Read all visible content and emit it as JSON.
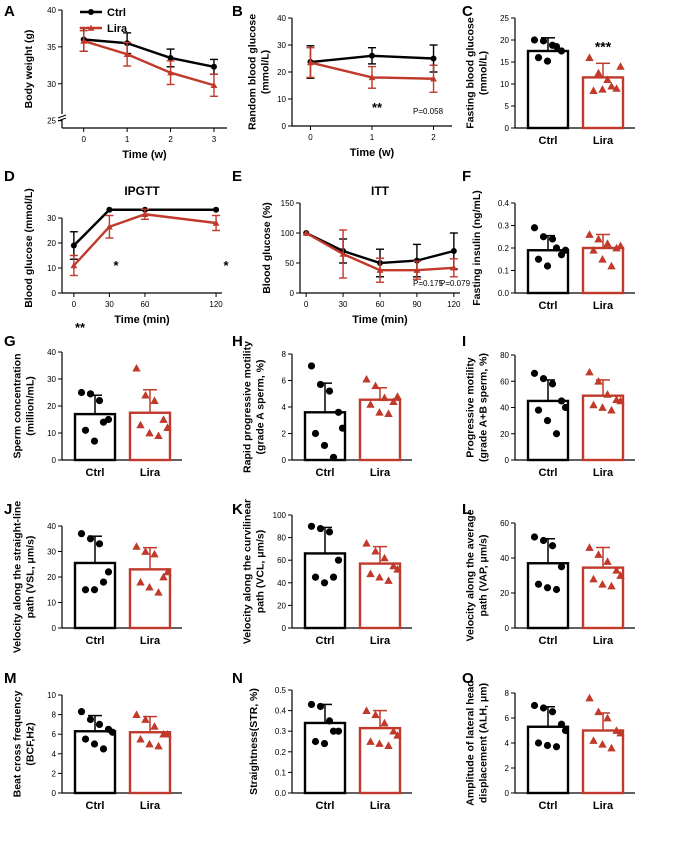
{
  "colors": {
    "ctrl": "#000000",
    "lira": "#c0392b"
  },
  "chart_data": [
    {
      "panel": "A",
      "type": "line",
      "title": "",
      "xlabel": "Time (w)",
      "ylabel": "Body weight (g)",
      "x": [
        0,
        1,
        2,
        3
      ],
      "xlim": [
        -0.5,
        3.3
      ],
      "yticks": [
        "25",
        "30",
        "35",
        "40"
      ],
      "ylim": [
        24,
        40
      ],
      "y_axis_break": true,
      "legend": [
        "Ctrl",
        "Lira"
      ],
      "legend_position": "top-left",
      "series": [
        {
          "name": "Ctrl",
          "values": [
            36.0,
            35.5,
            33.5,
            32.3
          ],
          "err": [
            1.6,
            1.4,
            1.2,
            1.0
          ]
        },
        {
          "name": "Lira",
          "values": [
            35.8,
            34.0,
            31.5,
            29.8
          ],
          "err": [
            1.4,
            1.6,
            1.6,
            1.5
          ]
        }
      ],
      "annotations": []
    },
    {
      "panel": "B",
      "type": "line",
      "title": "",
      "xlabel": "Time (w)",
      "ylabel": "Random blood glucose (mmol/L)",
      "x": [
        0,
        1,
        2
      ],
      "xlim": [
        -0.3,
        2.3
      ],
      "yticks": [
        "0",
        "10",
        "20",
        "30",
        "40"
      ],
      "ylim": [
        0,
        40
      ],
      "series": [
        {
          "name": "Ctrl",
          "values": [
            23.7,
            26.0,
            25.0
          ],
          "err": [
            6.0,
            3.0,
            5.0
          ]
        },
        {
          "name": "Lira",
          "values": [
            23.5,
            18.0,
            17.5
          ],
          "err": [
            5.5,
            4.0,
            5.0
          ]
        }
      ],
      "annotations": [
        "**",
        "P=0.058"
      ]
    },
    {
      "panel": "C",
      "type": "bar",
      "title": "",
      "categories": [
        "Ctrl",
        "Lira"
      ],
      "ylabel": "Fasting blood glucose (mmol/L)",
      "yticks": [
        "0",
        "5",
        "10",
        "15",
        "20",
        "25"
      ],
      "ylim": [
        0,
        25
      ],
      "values": [
        17.5,
        11.5
      ],
      "err": [
        3.0,
        3.2
      ],
      "points": [
        [
          20.0,
          19.8,
          18.8,
          17.5,
          16.0,
          15.2,
          18.5
        ],
        [
          16.0,
          12.5,
          11.0,
          9.0,
          8.5,
          8.8,
          9.5,
          14.0
        ]
      ],
      "annotations": [
        "***"
      ]
    },
    {
      "panel": "D",
      "type": "line",
      "title": "IPGTT",
      "xlabel": "Time (min)",
      "ylabel": "Blood glucose (mmol/L)",
      "x": [
        0,
        30,
        60,
        120
      ],
      "xlim": [
        -10,
        125
      ],
      "yticks": [
        "0",
        "10",
        "20",
        "30"
      ],
      "ylim": [
        0,
        36
      ],
      "series": [
        {
          "name": "Ctrl",
          "values": [
            19.0,
            33.3,
            33.3,
            33.3
          ],
          "err": [
            5.5,
            0,
            0,
            0
          ]
        },
        {
          "name": "Lira",
          "values": [
            11.0,
            26.5,
            31.5,
            28.0
          ],
          "err": [
            4.0,
            4.5,
            2.0,
            3.0
          ]
        }
      ],
      "annotations": [
        "**",
        "*",
        "*"
      ]
    },
    {
      "panel": "E",
      "type": "line",
      "title": "ITT",
      "xlabel": "Time (min)",
      "ylabel": "Blood glucose (%)",
      "x": [
        0,
        30,
        60,
        90,
        120
      ],
      "xlim": [
        -5,
        125
      ],
      "yticks": [
        "0",
        "50",
        "100",
        "150"
      ],
      "ylim": [
        0,
        150
      ],
      "series": [
        {
          "name": "Ctrl",
          "values": [
            100,
            70,
            50,
            54,
            70
          ],
          "err": [
            0,
            20,
            23,
            27,
            30
          ]
        },
        {
          "name": "Lira",
          "values": [
            100,
            65,
            38,
            38,
            42
          ],
          "err": [
            0,
            40,
            20,
            15,
            15
          ]
        }
      ],
      "annotations": [
        "P=0.175",
        "P=0.079"
      ]
    },
    {
      "panel": "F",
      "type": "bar",
      "title": "",
      "categories": [
        "Ctrl",
        "Lira"
      ],
      "ylabel": "Fasting insulin (ng/mL)",
      "yticks": [
        "0.0",
        "0.1",
        "0.2",
        "0.3",
        "0.4"
      ],
      "ylim": [
        0,
        0.4
      ],
      "values": [
        0.19,
        0.2
      ],
      "err": [
        0.065,
        0.06
      ],
      "points": [
        [
          0.29,
          0.25,
          0.24,
          0.17,
          0.15,
          0.12,
          0.2,
          0.19
        ],
        [
          0.26,
          0.24,
          0.22,
          0.2,
          0.19,
          0.15,
          0.12,
          0.21
        ]
      ],
      "annotations": []
    },
    {
      "panel": "G",
      "type": "bar",
      "title": "",
      "categories": [
        "Ctrl",
        "Lira"
      ],
      "ylabel": "Sperm concentration (million/mL)",
      "yticks": [
        "0",
        "10",
        "20",
        "30",
        "40"
      ],
      "ylim": [
        0,
        40
      ],
      "values": [
        17,
        17.5
      ],
      "err": [
        7,
        8.5
      ],
      "points": [
        [
          25,
          24.5,
          22,
          15,
          11,
          7,
          14
        ],
        [
          34,
          24,
          22,
          15,
          13,
          10,
          9,
          12
        ]
      ],
      "annotations": []
    },
    {
      "panel": "H",
      "type": "bar",
      "title": "",
      "categories": [
        "Ctrl",
        "Lira"
      ],
      "ylabel": "Rapid progressive motility (grade A sperm, %)",
      "yticks": [
        "0",
        "2",
        "4",
        "6",
        "8"
      ],
      "ylim": [
        0,
        8
      ],
      "values": [
        3.6,
        4.55
      ],
      "err": [
        2.2,
        0.9
      ],
      "points": [
        [
          7.1,
          5.7,
          5.2,
          3.6,
          2.0,
          1.1,
          0.2,
          2.4
        ],
        [
          6.1,
          5.6,
          4.7,
          4.4,
          4.2,
          3.6,
          3.5,
          4.8
        ]
      ],
      "annotations": []
    },
    {
      "panel": "I",
      "type": "bar",
      "title": "",
      "categories": [
        "Ctrl",
        "Lira"
      ],
      "ylabel": "Progressive motility (grade A+B sperm, %)",
      "yticks": [
        "0",
        "20",
        "40",
        "60",
        "80"
      ],
      "ylim": [
        0,
        80
      ],
      "values": [
        45,
        49
      ],
      "err": [
        16,
        12
      ],
      "points": [
        [
          66,
          62,
          58,
          45,
          38,
          30,
          20,
          40
        ],
        [
          67,
          60,
          50,
          46,
          42,
          40,
          38,
          45
        ]
      ],
      "annotations": []
    },
    {
      "panel": "J",
      "type": "bar",
      "title": "",
      "categories": [
        "Ctrl",
        "Lira"
      ],
      "ylabel": "Velocity along the straight-line path (VSL, μm/s)",
      "yticks": [
        "0",
        "10",
        "20",
        "30",
        "40"
      ],
      "ylim": [
        0,
        40
      ],
      "values": [
        25.5,
        23
      ],
      "err": [
        10.5,
        8.5
      ],
      "points": [
        [
          37,
          35,
          33,
          22,
          15,
          15,
          18
        ],
        [
          32,
          30,
          29,
          20,
          18,
          16,
          14,
          22
        ]
      ],
      "annotations": []
    },
    {
      "panel": "K",
      "type": "bar",
      "title": "",
      "categories": [
        "Ctrl",
        "Lira"
      ],
      "ylabel": "Velocity along the curvilinear path (VCL, μm/s)",
      "yticks": [
        "0",
        "20",
        "40",
        "60",
        "80",
        "100"
      ],
      "ylim": [
        0,
        100
      ],
      "values": [
        66,
        57
      ],
      "err": [
        23,
        15
      ],
      "points": [
        [
          90,
          88,
          85,
          60,
          45,
          40,
          45
        ],
        [
          75,
          68,
          62,
          55,
          48,
          45,
          42,
          52
        ]
      ],
      "annotations": []
    },
    {
      "panel": "L",
      "type": "bar",
      "title": "",
      "categories": [
        "Ctrl",
        "Lira"
      ],
      "ylabel": "Velocity along the average path (VAP, μm/s)",
      "yticks": [
        "0",
        "20",
        "40",
        "60"
      ],
      "ylim": [
        0,
        60
      ],
      "values": [
        37,
        34.5
      ],
      "err": [
        14,
        11.5
      ],
      "points": [
        [
          52,
          50,
          47,
          35,
          25,
          23,
          22
        ],
        [
          46,
          42,
          38,
          33,
          28,
          25,
          24,
          30
        ]
      ],
      "annotations": []
    },
    {
      "panel": "M",
      "type": "bar",
      "title": "",
      "categories": [
        "Ctrl",
        "Lira"
      ],
      "ylabel": "Beat cross frequency (BCF,Hz)",
      "yticks": [
        "0",
        "2",
        "4",
        "6",
        "8",
        "10"
      ],
      "ylim": [
        0,
        10
      ],
      "values": [
        6.3,
        6.2
      ],
      "err": [
        1.6,
        1.6
      ],
      "points": [
        [
          8.3,
          7.5,
          7.0,
          6.5,
          5.5,
          5.0,
          4.5,
          6.2
        ],
        [
          8.0,
          7.5,
          6.8,
          6.0,
          5.5,
          5.0,
          4.8,
          6.0
        ]
      ],
      "annotations": []
    },
    {
      "panel": "N",
      "type": "bar",
      "title": "",
      "categories": [
        "Ctrl",
        "Lira"
      ],
      "ylabel": "Straightness(STR, %)",
      "yticks": [
        "0.0",
        "0.1",
        "0.2",
        "0.3",
        "0.4",
        "0.5"
      ],
      "ylim": [
        0,
        0.5
      ],
      "values": [
        0.34,
        0.315
      ],
      "err": [
        0.09,
        0.085
      ],
      "points": [
        [
          0.43,
          0.42,
          0.35,
          0.3,
          0.25,
          0.24,
          0.3
        ],
        [
          0.4,
          0.38,
          0.34,
          0.3,
          0.25,
          0.24,
          0.23,
          0.28
        ]
      ],
      "annotations": []
    },
    {
      "panel": "O",
      "type": "bar",
      "title": "",
      "categories": [
        "Ctrl",
        "Lira"
      ],
      "ylabel": "Amplitude of lateral head displacement (ALH, μm)",
      "yticks": [
        "0",
        "2",
        "4",
        "6",
        "8"
      ],
      "ylim": [
        0,
        8
      ],
      "values": [
        5.3,
        5.0
      ],
      "err": [
        1.6,
        1.4
      ],
      "points": [
        [
          7.0,
          6.8,
          6.5,
          5.5,
          4.0,
          3.8,
          3.7,
          5.0
        ],
        [
          7.6,
          6.5,
          6.0,
          5.0,
          4.2,
          3.9,
          3.6,
          4.8
        ]
      ],
      "annotations": []
    }
  ]
}
